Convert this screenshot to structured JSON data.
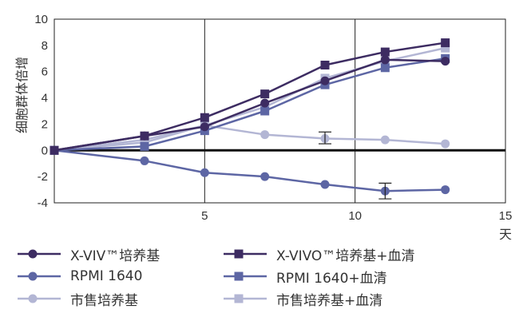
{
  "chart_data": {
    "type": "line",
    "ylabel": "细胞群体倍增",
    "xlabel": "天",
    "xlim": [
      0,
      15
    ],
    "ylim": [
      -4,
      10
    ],
    "x_ticks": [
      "5",
      "10",
      "15"
    ],
    "y_ticks": [
      "10",
      "8",
      "6",
      "4",
      "2",
      "0",
      "-2",
      "-4"
    ],
    "grid": true,
    "legend_position": "bottom",
    "series": [
      {
        "name": "X-VIV™培养基",
        "marker": "circle",
        "color": "#3d2c62",
        "x": [
          0,
          3,
          5,
          7,
          9,
          11,
          13
        ],
        "y": [
          0,
          1.1,
          1.8,
          3.6,
          5.3,
          6.9,
          6.8
        ]
      },
      {
        "name": "X-VIVO™培养基+血清",
        "marker": "square",
        "color": "#3d2c62",
        "x": [
          0,
          3,
          5,
          7,
          9,
          11,
          13
        ],
        "y": [
          0,
          1.1,
          2.5,
          4.3,
          6.5,
          7.5,
          8.2
        ]
      },
      {
        "name": "RPMI 1640",
        "marker": "circle",
        "color": "#5d66a4",
        "x": [
          0,
          3,
          5,
          7,
          9,
          11,
          13
        ],
        "y": [
          0,
          -0.8,
          -1.7,
          -2.0,
          -2.6,
          -3.1,
          -3.0
        ]
      },
      {
        "name": "RPMI 1640+血清",
        "marker": "square",
        "color": "#5d66a4",
        "x": [
          0,
          3,
          5,
          7,
          9,
          11,
          13
        ],
        "y": [
          0,
          0.3,
          1.5,
          3.0,
          5.0,
          6.3,
          7.0
        ]
      },
      {
        "name": "市售培养基",
        "marker": "circle",
        "color": "#b3b6d4",
        "x": [
          0,
          3,
          5,
          7,
          9,
          11,
          13
        ],
        "y": [
          0,
          0.8,
          1.9,
          1.2,
          0.9,
          0.8,
          0.5
        ]
      },
      {
        "name": "市售培养基+血清",
        "marker": "square",
        "color": "#b3b6d4",
        "x": [
          0,
          3,
          5,
          7,
          9,
          11,
          13
        ],
        "y": [
          0,
          0.6,
          1.9,
          3.3,
          5.5,
          6.8,
          7.8
        ]
      }
    ],
    "error_bars": [
      {
        "x": 9,
        "low": 0.5,
        "high": 1.4
      },
      {
        "x": 11,
        "low": -3.7,
        "high": -2.5
      }
    ]
  }
}
